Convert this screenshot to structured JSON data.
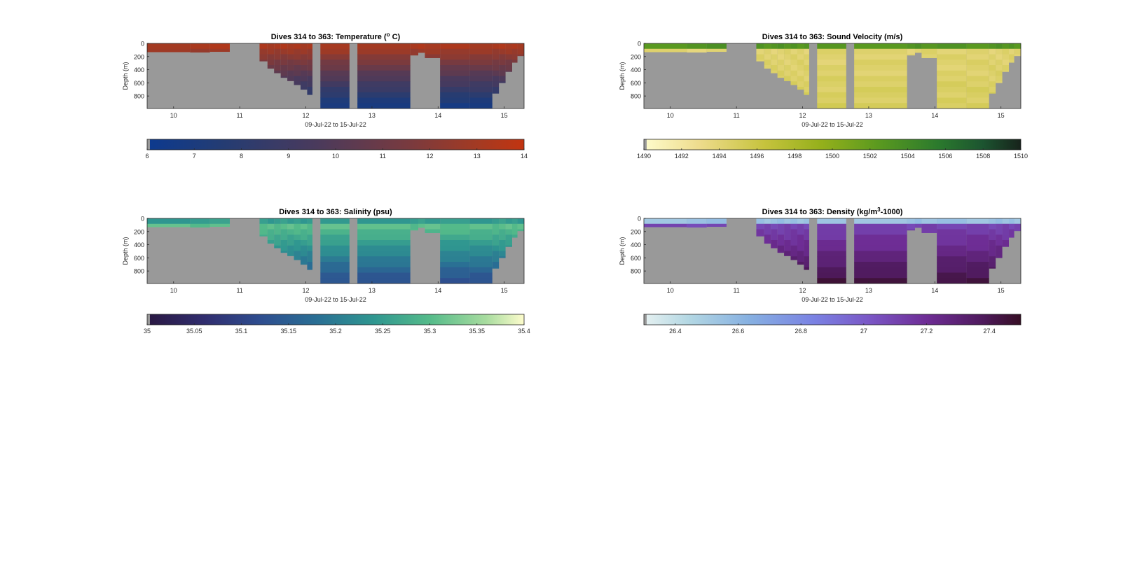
{
  "figure": {
    "background": "#ffffff",
    "mask_color": "#999999",
    "shared_xlabel": "09-Jul-22 to 15-Jul-22",
    "shared_ylabel": "Depth (m)"
  },
  "chart_data": [
    {
      "type": "heatmap",
      "title": "Dives 314 to 363: Temperature (° C)",
      "title_parts": {
        "pre": "Dives 314 to 363: Temperature (",
        "sup": "o",
        "post": " C)"
      },
      "xlabel": "09-Jul-22 to 15-Jul-22",
      "ylabel": "Depth (m)",
      "xlim": [
        9.6,
        15.3
      ],
      "ylim": [
        990,
        0
      ],
      "xticks": [
        10,
        11,
        12,
        13,
        14,
        15
      ],
      "yticks": [
        0,
        200,
        400,
        600,
        800
      ],
      "colormap": "thermal-diverging",
      "colorbar": {
        "min": 6,
        "max": 14,
        "ticks": [
          "6",
          "7",
          "8",
          "9",
          "10",
          "11",
          "12",
          "13",
          "14"
        ]
      },
      "field": {
        "top_value": 13.5,
        "bottom_value": 6.5
      }
    },
    {
      "type": "heatmap",
      "title": "Dives 314 to 363: Sound Velocity (m/s)",
      "xlabel": "09-Jul-22 to 15-Jul-22",
      "ylabel": "Depth (m)",
      "xlim": [
        9.6,
        15.3
      ],
      "ylim": [
        990,
        0
      ],
      "xticks": [
        10,
        11,
        12,
        13,
        14,
        15
      ],
      "yticks": [
        0,
        200,
        400,
        600,
        800
      ],
      "colormap": "speed",
      "colorbar": {
        "min": 1490,
        "max": 1510,
        "ticks": [
          "1490",
          "1492",
          "1494",
          "1496",
          "1498",
          "1500",
          "1502",
          "1504",
          "1506",
          "1508",
          "1510"
        ]
      },
      "field": {
        "surface_value": 1503,
        "top_value": 1494,
        "bottom_value": 1495
      }
    },
    {
      "type": "heatmap",
      "title": "Dives 314 to 363: Salinity (psu)",
      "xlabel": "09-Jul-22 to 15-Jul-22",
      "ylabel": "Depth (m)",
      "xlim": [
        9.6,
        15.3
      ],
      "ylim": [
        990,
        0
      ],
      "xticks": [
        10,
        11,
        12,
        13,
        14,
        15
      ],
      "yticks": [
        0,
        200,
        400,
        600,
        800
      ],
      "colormap": "haline",
      "colorbar": {
        "min": 35,
        "max": 35.4,
        "ticks": [
          "35",
          "35.05",
          "35.1",
          "35.15",
          "35.2",
          "35.25",
          "35.3",
          "35.35",
          "35.4"
        ]
      },
      "field": {
        "surface_value": 35.25,
        "top_value": 35.33,
        "bottom_value": 35.12
      }
    },
    {
      "type": "heatmap",
      "title": "Dives 314 to 363: Density (kg/m³-1000)",
      "title_parts": {
        "pre": "Dives 314 to 363: Density (kg/m",
        "sup": "3",
        "post": "-1000)"
      },
      "xlabel": "09-Jul-22 to 15-Jul-22",
      "ylabel": "Depth (m)",
      "xlim": [
        9.6,
        15.3
      ],
      "ylim": [
        990,
        0
      ],
      "xticks": [
        10,
        11,
        12,
        13,
        14,
        15
      ],
      "yticks": [
        0,
        200,
        400,
        600,
        800
      ],
      "colormap": "dense",
      "colorbar": {
        "min": 26.3,
        "max": 27.5,
        "ticks": [
          "26.4",
          "26.6",
          "26.8",
          "27",
          "27.2",
          "27.4"
        ]
      },
      "field": {
        "surface_value": 26.55,
        "top_value": 27.05,
        "bottom_value": 27.45
      }
    }
  ]
}
